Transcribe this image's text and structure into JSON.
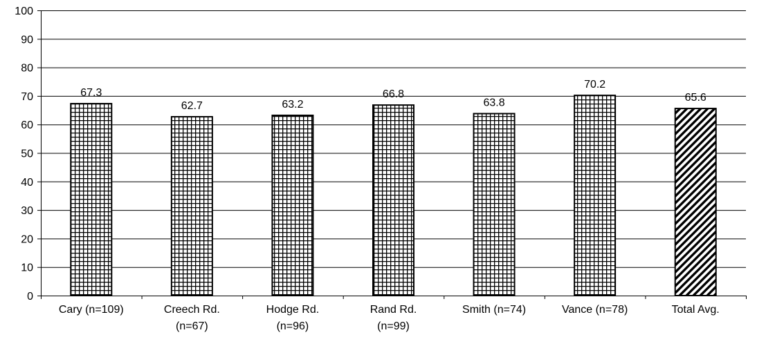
{
  "chart_data": {
    "type": "bar",
    "title": "",
    "xlabel": "",
    "ylabel": "",
    "ylim": [
      0,
      100
    ],
    "yticks": [
      0,
      10,
      20,
      30,
      40,
      50,
      60,
      70,
      80,
      90,
      100
    ],
    "grid": true,
    "legend": "none",
    "categories": [
      [
        "Cary (n=109)"
      ],
      [
        "Creech Rd.",
        "(n=67)"
      ],
      [
        "Hodge Rd.",
        "(n=96)"
      ],
      [
        "Rand Rd.",
        "(n=99)"
      ],
      [
        "Smith (n=74)"
      ],
      [
        "Vance (n=78)"
      ],
      [
        "Total Avg."
      ]
    ],
    "values": [
      67.3,
      62.7,
      63.2,
      66.8,
      63.8,
      70.2,
      65.6
    ],
    "value_labels": [
      "67.3",
      "62.7",
      "63.2",
      "66.8",
      "63.8",
      "70.2",
      "65.6"
    ],
    "fill_patterns": [
      "grid",
      "grid",
      "grid",
      "grid",
      "grid",
      "grid",
      "diagonal"
    ]
  }
}
